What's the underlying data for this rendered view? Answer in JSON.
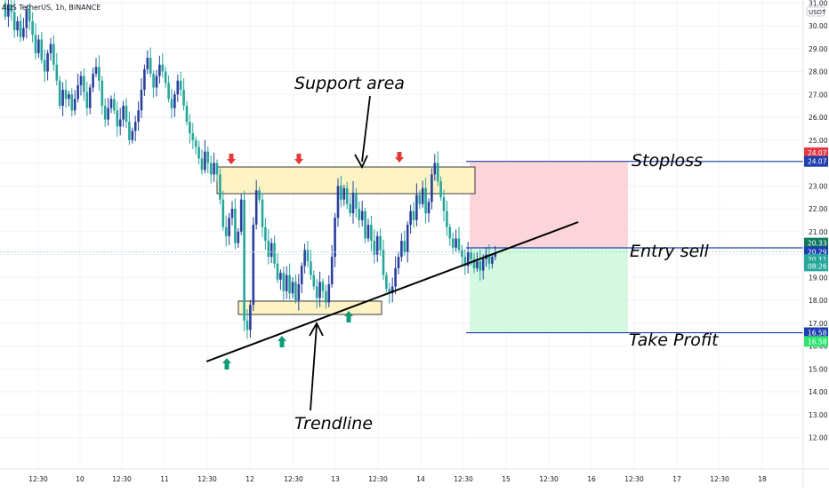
{
  "header": {
    "symbol_line": "ADS TetherUS, 1h, BINANCE"
  },
  "colors": {
    "up": "#2a3f9d",
    "down": "#26a69a",
    "grid": "#f0f3fa",
    "level_line": "#1e3fb0",
    "zone_fill": "#fdf3c4",
    "zone_stroke": "#3b3b3b",
    "risk_fill": "#fbd5da",
    "reward_fill": "#d4f8e0",
    "arrow_red": "#e53935",
    "arrow_green": "#0f9b7a"
  },
  "price_axis": {
    "unit": "USDT",
    "ticks": [
      "31.00",
      "30.00",
      "29.00",
      "28.00",
      "27.00",
      "26.00",
      "25.00",
      "24.00",
      "23.00",
      "22.00",
      "21.00",
      "20.00",
      "19.00",
      "18.00",
      "17.00",
      "16.00",
      "15.00",
      "14.00",
      "13.00",
      "12.00"
    ],
    "badges": [
      {
        "text": "24.07",
        "price": 24.45,
        "color": "#e53945"
      },
      {
        "text": "24.07",
        "price": 24.07,
        "color": "#1e3fb0"
      },
      {
        "text": "20.33",
        "price": 20.5,
        "color": "#0f7a5f"
      },
      {
        "text": "20.29",
        "price": 20.12,
        "color": "#1e3fb0"
      },
      {
        "text": "20.11",
        "price": 19.78,
        "color": "#26a69a"
      },
      {
        "text": "08:26",
        "price": 19.5,
        "color": "#26a69a"
      },
      {
        "text": "16.58",
        "price": 16.58,
        "color": "#1e3fb0"
      },
      {
        "text": "16.58",
        "price": 16.2,
        "color": "#2ee56e"
      }
    ]
  },
  "time_axis": {
    "labels": [
      "12:30",
      "10",
      "12:30",
      "11",
      "12:30",
      "12",
      "12:30",
      "13",
      "12:30",
      "14",
      "12:30",
      "15",
      "12:30",
      "16",
      "12:30",
      "17",
      "12:30",
      "18"
    ]
  },
  "annotations": {
    "support_area": "Support area",
    "trendline": "Trendline",
    "stoploss": "Stoploss",
    "entry_sell": "Entry sell",
    "take_profit": "Take Profit"
  },
  "chart_data": {
    "type": "candlestick",
    "symbol": "ADS/USDT",
    "timeframe": "1h",
    "exchange": "BINANCE",
    "ylim": [
      11.6,
      31.2
    ],
    "time_range_bars": [
      -44,
      224
    ],
    "close_series": [
      30.4,
      30.9,
      30.6,
      29.8,
      30.2,
      29.5,
      29.9,
      30.7,
      30.2,
      29.6,
      28.8,
      29.4,
      28.5,
      28.0,
      28.8,
      29.2,
      28.3,
      27.6,
      26.5,
      27.2,
      26.8,
      27.0,
      26.3,
      26.8,
      27.4,
      27.8,
      27.1,
      26.4,
      27.3,
      27.9,
      28.2,
      27.6,
      26.5,
      25.9,
      26.4,
      26.8,
      26.3,
      25.6,
      25.9,
      26.5,
      25.8,
      25.0,
      25.4,
      25.8,
      26.3,
      27.2,
      28.1,
      28.6,
      27.9,
      27.3,
      27.8,
      28.3,
      28.0,
      27.5,
      26.8,
      26.4,
      27.0,
      27.6,
      27.2,
      26.5,
      25.8,
      25.3,
      25.0,
      24.7,
      24.2,
      23.7,
      24.5,
      24.0,
      23.5,
      24.0,
      23.5,
      22.4,
      21.2,
      20.8,
      21.6,
      22.0,
      20.5,
      21.0,
      22.4,
      17.1,
      16.7,
      17.8,
      21.3,
      22.8,
      22.4,
      21.2,
      20.6,
      19.9,
      20.5,
      19.6,
      18.9,
      19.2,
      18.4,
      19.1,
      18.3,
      18.8,
      18.0,
      18.7,
      19.5,
      20.2,
      19.7,
      19.1,
      18.6,
      18.1,
      18.8,
      18.4,
      17.9,
      18.7,
      19.9,
      21.6,
      23.0,
      22.4,
      22.9,
      22.2,
      21.8,
      22.7,
      22.0,
      21.5,
      21.9,
      20.7,
      21.3,
      20.6,
      20.0,
      20.8,
      20.2,
      19.1,
      18.5,
      18.3,
      18.6,
      19.4,
      19.9,
      20.6,
      20.1,
      21.3,
      21.9,
      21.5,
      22.6,
      22.2,
      22.9,
      21.8,
      22.3,
      23.5,
      24.0,
      23.2,
      22.5,
      21.9,
      21.2,
      20.7,
      20.3,
      20.7,
      20.2,
      19.9,
      19.5,
      20.1,
      19.8,
      19.4,
      19.7,
      19.3,
      19.8,
      20.0,
      19.6,
      19.9,
      20.1
    ]
  }
}
